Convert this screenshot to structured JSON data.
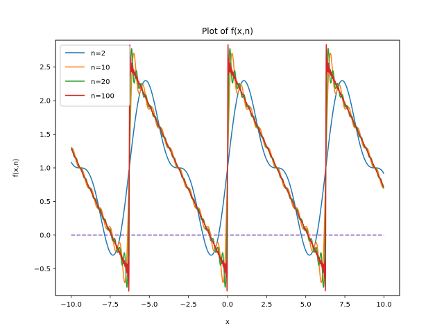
{
  "chart_data": {
    "type": "line",
    "title": "Plot of f(x,n)",
    "xlabel": "x",
    "ylabel": "f(x,n)",
    "xlim": [
      -11.0,
      11.0
    ],
    "ylim": [
      -0.9,
      2.9
    ],
    "xticks": [
      -10.0,
      -7.5,
      -5.0,
      -2.5,
      0.0,
      2.5,
      5.0,
      7.5,
      10.0
    ],
    "xtick_labels": [
      "−10.0",
      "−7.5",
      "−5.0",
      "−2.5",
      "0.0",
      "2.5",
      "5.0",
      "7.5",
      "10.0"
    ],
    "yticks": [
      -0.5,
      0.0,
      0.5,
      1.0,
      1.5,
      2.0,
      2.5
    ],
    "ytick_labels": [
      "−0.5",
      "0.0",
      "0.5",
      "1.0",
      "1.5",
      "2.0",
      "2.5"
    ],
    "grid": false,
    "legend_position": "top-left",
    "x_domain": [
      -10.0,
      10.0
    ],
    "series": [
      {
        "name": "n=2",
        "terms": 2,
        "color": "#1f77b4"
      },
      {
        "name": "n=10",
        "terms": 10,
        "color": "#ff7f0e"
      },
      {
        "name": "n=20",
        "terms": 20,
        "color": "#2ca02c"
      },
      {
        "name": "n=100",
        "terms": 100,
        "color": "#d62728"
      }
    ],
    "reference_line": {
      "y": 0.0,
      "color": "#9467bd",
      "style": "dashed"
    }
  }
}
